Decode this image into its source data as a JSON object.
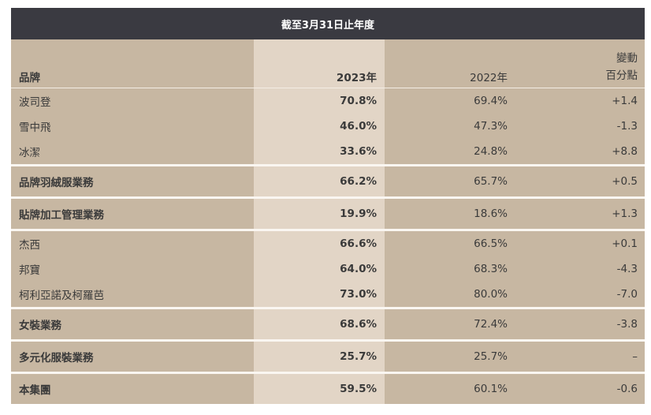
{
  "banner": "截至3月31日止年度",
  "header": {
    "brand": "品牌",
    "col_2023": "2023年",
    "col_2022": "2022年",
    "col_change_line1": "變動",
    "col_change_line2": "百分點"
  },
  "groups": [
    {
      "rows": [
        {
          "label": "波司登",
          "v2023": "70.8%",
          "v2022": "69.4%",
          "change": "+1.4",
          "bold": false
        },
        {
          "label": "雪中飛",
          "v2023": "46.0%",
          "v2022": "47.3%",
          "change": "-1.3",
          "bold": false
        },
        {
          "label": "冰潔",
          "v2023": "33.6%",
          "v2022": "24.8%",
          "change": "+8.8",
          "bold": false
        }
      ]
    },
    {
      "rows": [
        {
          "label": "品牌羽絨服業務",
          "v2023": "66.2%",
          "v2022": "65.7%",
          "change": "+0.5",
          "bold": true
        }
      ]
    },
    {
      "rows": [
        {
          "label": "貼牌加工管理業務",
          "v2023": "19.9%",
          "v2022": "18.6%",
          "change": "+1.3",
          "bold": true
        }
      ]
    },
    {
      "rows": [
        {
          "label": "杰西",
          "v2023": "66.6%",
          "v2022": "66.5%",
          "change": "+0.1",
          "bold": false
        },
        {
          "label": "邦寶",
          "v2023": "64.0%",
          "v2022": "68.3%",
          "change": "-4.3",
          "bold": false
        },
        {
          "label": "柯利亞諾及柯羅芭",
          "v2023": "73.0%",
          "v2022": "80.0%",
          "change": "-7.0",
          "bold": false
        }
      ]
    },
    {
      "rows": [
        {
          "label": "女裝業務",
          "v2023": "68.6%",
          "v2022": "72.4%",
          "change": "-3.8",
          "bold": true
        }
      ]
    },
    {
      "rows": [
        {
          "label": "多元化服裝業務",
          "v2023": "25.7%",
          "v2022": "25.7%",
          "change": "–",
          "bold": true
        }
      ]
    },
    {
      "rows": [
        {
          "label": "本集團",
          "v2023": "59.5%",
          "v2022": "60.1%",
          "change": "-0.6",
          "bold": true
        }
      ]
    }
  ],
  "colors": {
    "banner_bg": "#3a3a41",
    "table_bg": "#c7b7a2",
    "highlight_col": "#e2d5c6",
    "separator": "#faf6f1"
  }
}
